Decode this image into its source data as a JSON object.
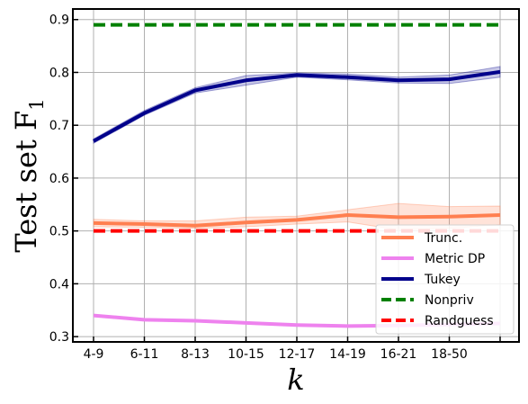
{
  "chart_data": {
    "type": "line",
    "xlabel": "k",
    "ylabel": "Test set F",
    "ylabel_subscript": "1",
    "categories": [
      "4-9",
      "6-11",
      "8-13",
      "10-15",
      "12-17",
      "14-19",
      "16-21",
      "18-50",
      ""
    ],
    "ylim": [
      0.29,
      0.92
    ],
    "yticks": [
      "0.3",
      "0.4",
      "0.5",
      "0.6",
      "0.7",
      "0.8",
      "0.9"
    ],
    "grid": true,
    "legend_position": "bottom-right",
    "series": [
      {
        "name": "Trunc.",
        "color": "#ff7f50",
        "style": "solid",
        "values": [
          0.515,
          0.513,
          0.51,
          0.516,
          0.521,
          0.53,
          0.526,
          0.527,
          0.53
        ],
        "lower": [
          0.508,
          0.507,
          0.505,
          0.508,
          0.513,
          0.517,
          0.502,
          0.505,
          0.512
        ],
        "upper": [
          0.522,
          0.519,
          0.519,
          0.526,
          0.528,
          0.54,
          0.552,
          0.546,
          0.547
        ]
      },
      {
        "name": "Metric DP",
        "color": "#ee82ee",
        "style": "solid",
        "values": [
          0.34,
          0.332,
          0.33,
          0.326,
          0.322,
          0.32,
          0.321,
          0.323,
          0.325
        ]
      },
      {
        "name": "Tukey",
        "color": "#00008b",
        "style": "solid",
        "values": [
          0.67,
          0.723,
          0.766,
          0.785,
          0.795,
          0.791,
          0.785,
          0.787,
          0.801
        ],
        "lower": [
          0.666,
          0.719,
          0.761,
          0.776,
          0.791,
          0.786,
          0.78,
          0.779,
          0.791
        ],
        "upper": [
          0.674,
          0.728,
          0.771,
          0.794,
          0.799,
          0.797,
          0.791,
          0.795,
          0.811
        ]
      },
      {
        "name": "Nonpriv",
        "color": "#008000",
        "style": "dashed",
        "values": [
          0.89,
          0.89,
          0.89,
          0.89,
          0.89,
          0.89,
          0.89,
          0.89,
          0.89
        ]
      },
      {
        "name": "Randguess",
        "color": "#ff0000",
        "style": "dashed",
        "values": [
          0.5,
          0.5,
          0.5,
          0.5,
          0.5,
          0.5,
          0.5,
          0.5,
          0.5
        ]
      }
    ]
  }
}
